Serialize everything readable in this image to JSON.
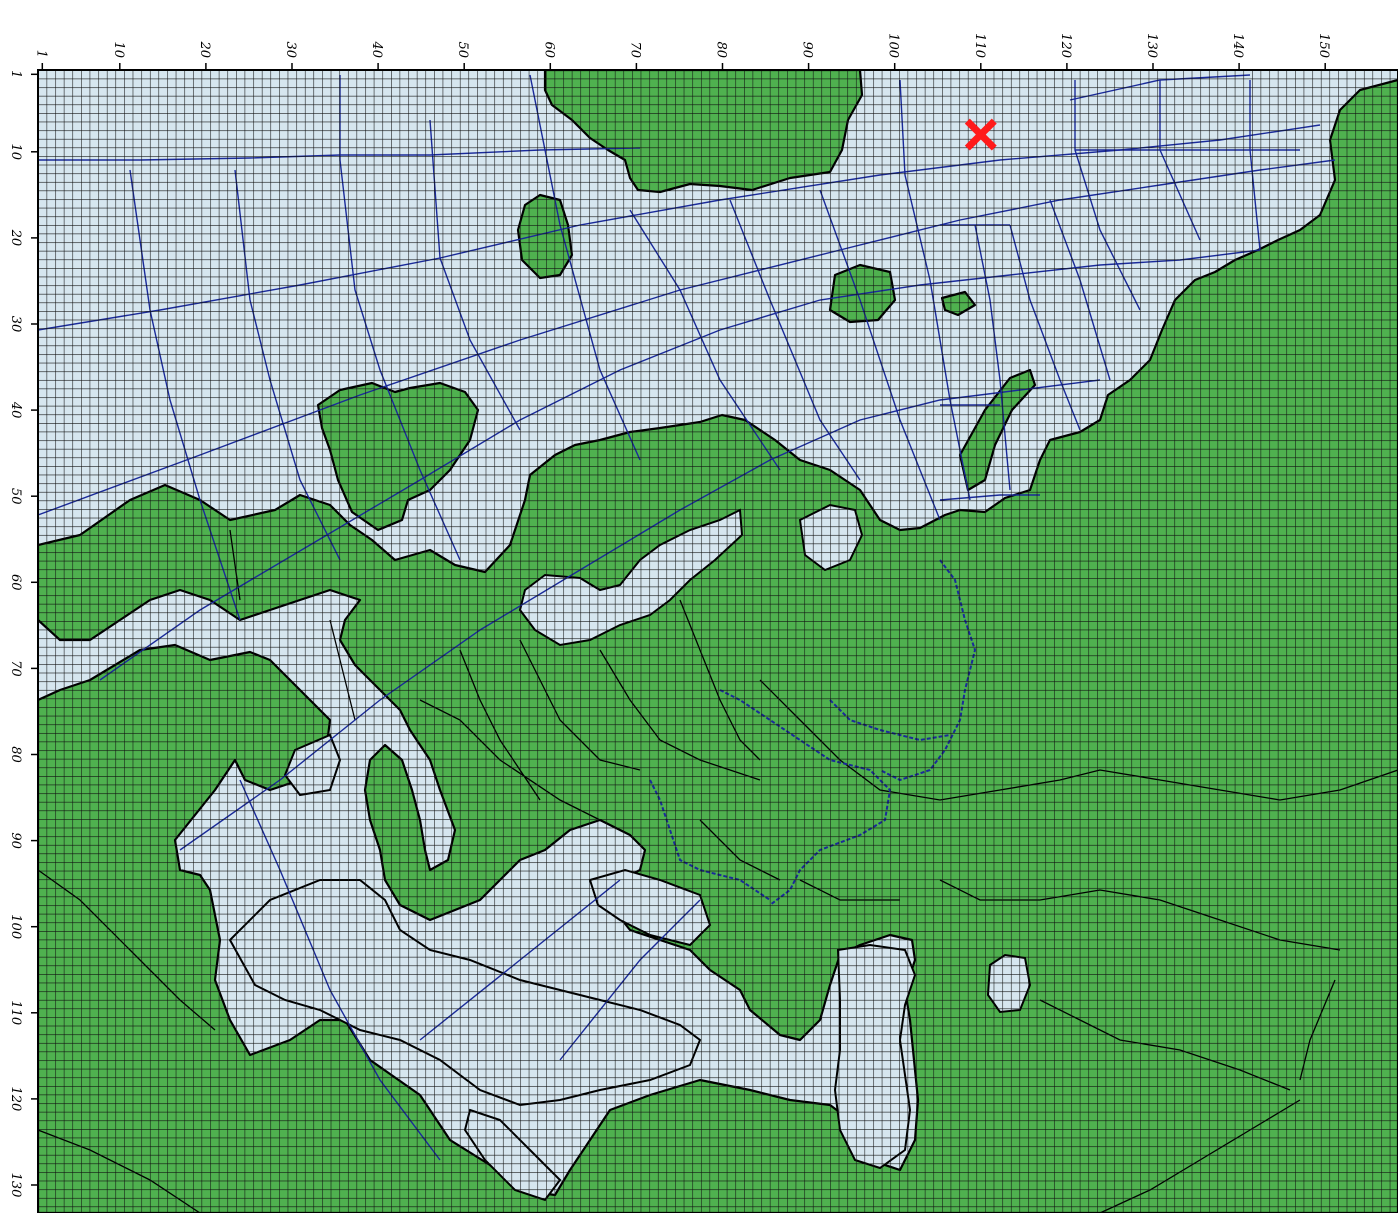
{
  "map": {
    "grid": {
      "columns": 155,
      "rows": 135
    },
    "colors": {
      "land": "#4fb14f",
      "water": "#d6e6ef",
      "grid_line": "#101010",
      "coastline": "#000000",
      "graticule": "#1a2a9a",
      "marker": "#ff1a1a"
    },
    "top_axis": {
      "ticks": [
        1,
        10,
        20,
        30,
        40,
        50,
        60,
        70,
        80,
        90,
        100,
        110,
        120,
        130,
        140,
        150
      ],
      "labels": [
        "1",
        "10",
        "20",
        "30",
        "40",
        "50",
        "60",
        "70",
        "80",
        "90",
        "100",
        "110",
        "120",
        "130",
        "140",
        "150"
      ]
    },
    "left_axis": {
      "ticks": [
        1,
        10,
        20,
        30,
        40,
        50,
        60,
        70,
        80,
        90,
        100,
        110,
        120,
        130
      ],
      "labels": [
        "1",
        "10",
        "20",
        "30",
        "40",
        "50",
        "60",
        "70",
        "80",
        "90",
        "100",
        "110",
        "120",
        "130"
      ]
    },
    "marker": {
      "symbol": "x-mark-icon",
      "column": 110,
      "row": 8
    }
  }
}
